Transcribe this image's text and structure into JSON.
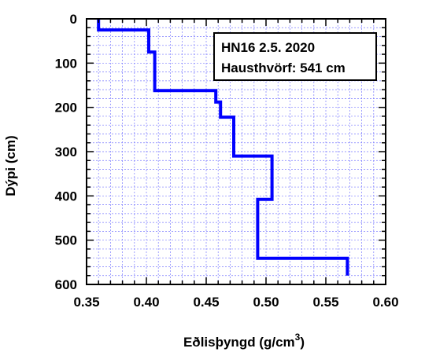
{
  "chart_data": {
    "type": "line",
    "title": "",
    "xlabel": "Eðlisþyngd (g/cm",
    "xlabel_sup": "3",
    "xlabel_end": ")",
    "ylabel": "Dýpi (cm)",
    "xlim": [
      0.35,
      0.6
    ],
    "ylim": [
      0,
      600
    ],
    "y_inverted": true,
    "grid": true,
    "x_ticks": [
      "0.35",
      "0.40",
      "0.45",
      "0.50",
      "0.55",
      "0.60"
    ],
    "x_tick_values": [
      0.35,
      0.4,
      0.45,
      0.5,
      0.55,
      0.6
    ],
    "y_ticks": [
      "0",
      "100",
      "200",
      "300",
      "400",
      "500",
      "600"
    ],
    "y_tick_values": [
      0,
      100,
      200,
      300,
      400,
      500,
      600
    ],
    "annotation_lines": [
      "HN16 2.5. 2020",
      "Hausthvörf: 541 cm"
    ],
    "annotation_position": "top-right",
    "series": [
      {
        "color": "#0000ff",
        "step_profile": true,
        "points": [
          [
            0.36,
            0
          ],
          [
            0.36,
            25
          ],
          [
            0.402,
            25
          ],
          [
            0.402,
            75
          ],
          [
            0.407,
            75
          ],
          [
            0.407,
            162
          ],
          [
            0.458,
            162
          ],
          [
            0.458,
            188
          ],
          [
            0.462,
            188
          ],
          [
            0.462,
            222
          ],
          [
            0.473,
            222
          ],
          [
            0.473,
            310
          ],
          [
            0.505,
            310
          ],
          [
            0.505,
            408
          ],
          [
            0.493,
            408
          ],
          [
            0.493,
            541
          ],
          [
            0.568,
            541
          ],
          [
            0.568,
            580
          ]
        ]
      }
    ]
  }
}
